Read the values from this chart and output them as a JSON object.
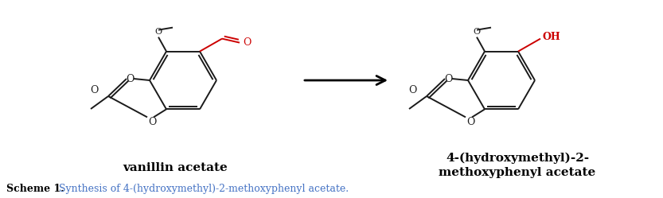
{
  "figure_width": 8.33,
  "figure_height": 2.49,
  "dpi": 100,
  "background_color": "#ffffff",
  "bond_color": "#1a1a1a",
  "red_color": "#cc0000",
  "label1": "vanillin acetate",
  "label2_line1": "4-(hydroxymethyl)-2-",
  "label2_line2": "methoxyphenyl acetate",
  "caption_bold": "Scheme 1.",
  "caption_rest": " Synthesis of 4-(hydroxymethyl)-2-methoxyphenyl acetate.",
  "caption_color_bold": "#000000",
  "caption_color_rest": "#4472c4"
}
